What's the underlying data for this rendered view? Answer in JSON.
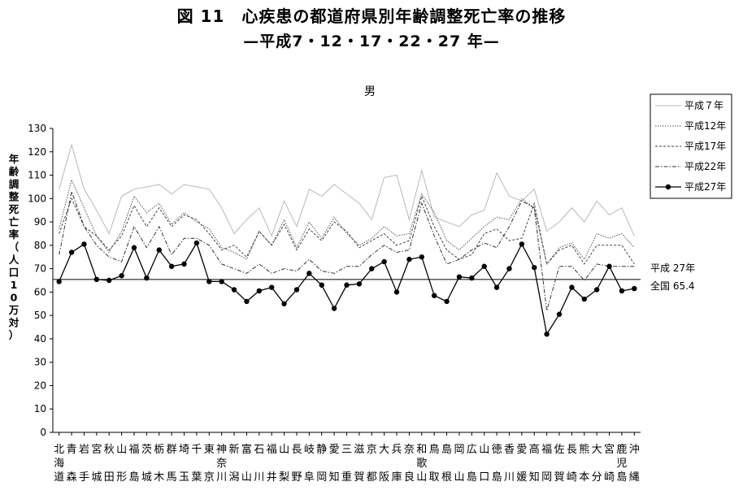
{
  "title": "図 11　心疾患の都道府県別年齢調整死亡率の推移",
  "subtitle": "—平成7・12・17・22・27 年—",
  "chart_data": {
    "type": "line",
    "panel_label": "男",
    "ylabel": "年齢調整死亡率（人口10万対）",
    "ylim": [
      0,
      130
    ],
    "ytick_step": 10,
    "grid": false,
    "legend_position": "top-right",
    "categories": [
      "北海道",
      "青森",
      "岩手",
      "宮城",
      "秋田",
      "山形",
      "福島",
      "茨城",
      "栃木",
      "群馬",
      "埼玉",
      "千葉",
      "東京",
      "神奈川",
      "新潟",
      "富山",
      "石川",
      "福井",
      "山梨",
      "長野",
      "岐阜",
      "静岡",
      "愛知",
      "三重",
      "滋賀",
      "京都",
      "大阪",
      "兵庫",
      "奈良",
      "和歌山",
      "鳥取",
      "島根",
      "岡山",
      "広島",
      "山口",
      "徳島",
      "香川",
      "愛媛",
      "高知",
      "福岡",
      "佐賀",
      "長崎",
      "熊本",
      "大分",
      "宮崎",
      "鹿児島",
      "沖縄"
    ],
    "series": [
      {
        "name": "平成７年",
        "color": "#b8b8b8",
        "dash": "",
        "marker": false,
        "values": [
          104,
          123,
          104,
          95,
          85,
          101,
          104,
          105,
          106,
          102,
          106,
          105,
          104,
          96,
          85,
          91,
          96,
          84,
          99,
          88,
          104,
          101,
          106,
          102,
          98,
          91,
          109,
          110,
          91,
          112,
          92,
          90,
          88,
          93,
          95,
          111,
          101,
          99,
          104,
          86,
          90,
          96,
          90,
          99,
          93,
          96,
          84
        ]
      },
      {
        "name": "平成12年",
        "color": "#555555",
        "dash": "1.5,1.5",
        "marker": false,
        "values": [
          87,
          108,
          96,
          84,
          77,
          86,
          101,
          94,
          98,
          89,
          94,
          90,
          87,
          79,
          77,
          74,
          86,
          80,
          91,
          79,
          90,
          83,
          92,
          85,
          80,
          83,
          88,
          84,
          85,
          102,
          94,
          82,
          78,
          83,
          88,
          92,
          91,
          100,
          96,
          72,
          79,
          81,
          74,
          85,
          83,
          85,
          79
        ]
      },
      {
        "name": "平成17年",
        "color": "#444444",
        "dash": "3,2",
        "marker": false,
        "values": [
          85,
          100,
          88,
          84,
          78,
          84,
          97,
          88,
          96,
          88,
          93,
          91,
          85,
          78,
          80,
          75,
          86,
          80,
          89,
          78,
          87,
          82,
          90,
          86,
          79,
          82,
          85,
          80,
          82,
          101,
          88,
          78,
          74,
          76,
          85,
          87,
          82,
          83,
          98,
          72,
          78,
          80,
          72,
          80,
          80,
          80,
          72
        ]
      },
      {
        "name": "平成22年",
        "color": "#333333",
        "dash": "5,2,1.5,2",
        "marker": false,
        "values": [
          76,
          103,
          88,
          80,
          75,
          73,
          88,
          79,
          88,
          76,
          83,
          83,
          80,
          72,
          70,
          68,
          72,
          68,
          70,
          69,
          74,
          69,
          68,
          71,
          71,
          76,
          80,
          77,
          78,
          98,
          84,
          72,
          74,
          78,
          81,
          79,
          88,
          99,
          96,
          52,
          71,
          71,
          65,
          72,
          71,
          71,
          71
        ]
      },
      {
        "name": "平成27年",
        "color": "#000000",
        "dash": "",
        "marker": true,
        "values": [
          64.5,
          77,
          80.5,
          65.4,
          65,
          67,
          79,
          66,
          78,
          71,
          72,
          81,
          64.5,
          64.5,
          61,
          56,
          60.5,
          62,
          55,
          61,
          68,
          63,
          53,
          63,
          63.5,
          70,
          73,
          60,
          74,
          75,
          58.5,
          56,
          66.5,
          66,
          71,
          62,
          70,
          80.5,
          70.5,
          42,
          50.5,
          62,
          57,
          61,
          71,
          60.5,
          61.5
        ]
      }
    ],
    "reference_line": {
      "value": 65.4,
      "label_top": "平成 27年",
      "label_bottom": "全国 65.4"
    }
  }
}
